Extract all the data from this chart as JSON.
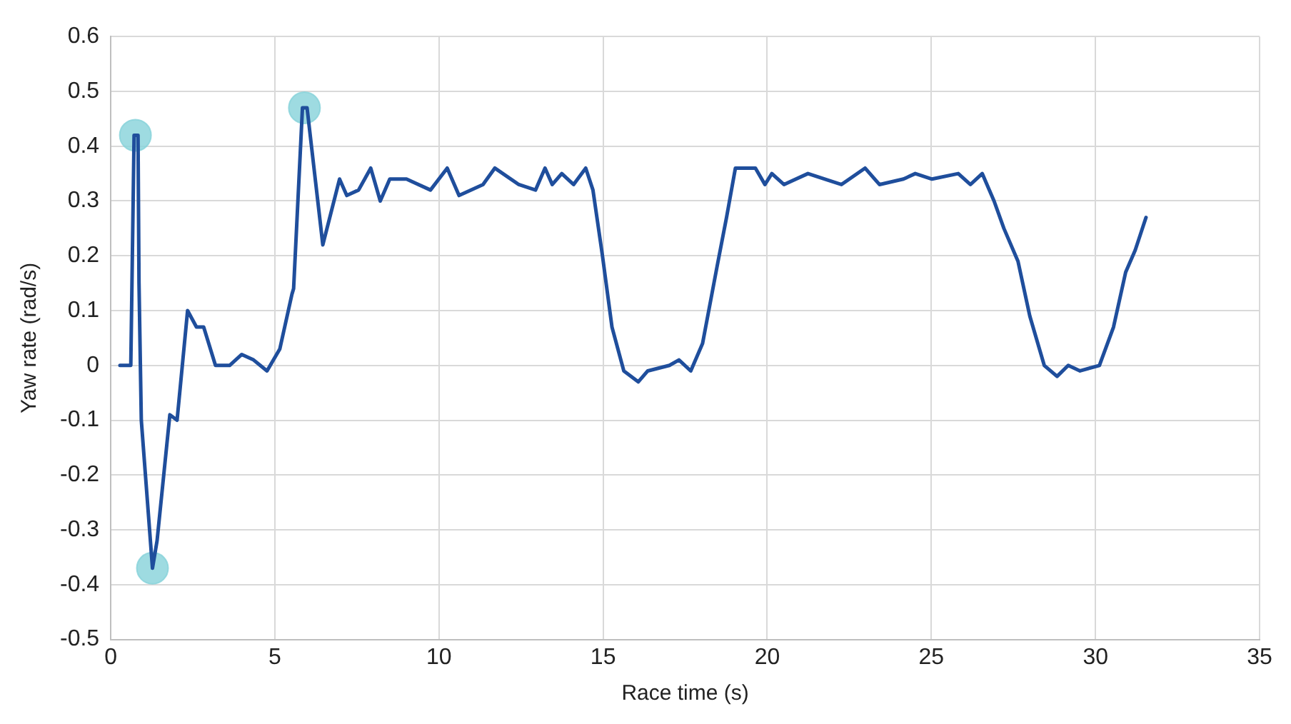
{
  "chart_data": {
    "type": "line",
    "xlabel": "Race time (s)",
    "ylabel": "Yaw rate (rad/s)",
    "xlim": [
      0,
      35
    ],
    "xticks": [
      0,
      5,
      10,
      15,
      20,
      25,
      30,
      35
    ],
    "ylim": [
      -0.5,
      0.6
    ],
    "yticks": [
      -0.5,
      -0.4,
      -0.3,
      -0.2,
      -0.1,
      0,
      0.1,
      0.2,
      0.3,
      0.4,
      0.5,
      0.6
    ],
    "grid": true,
    "legend": false,
    "marker": "none",
    "line_style": "solid",
    "series": [
      {
        "type": "line",
        "color": "#1f4e9c",
        "x": [
          0.28,
          0.61,
          0.71,
          0.83,
          0.86,
          0.93,
          1.27,
          1.41,
          1.8,
          2.02,
          2.34,
          2.61,
          2.83,
          3.19,
          3.62,
          3.99,
          4.35,
          4.76,
          5.15,
          5.52,
          5.57,
          5.84,
          5.98,
          6.46,
          6.97,
          7.19,
          7.55,
          7.92,
          8.21,
          8.5,
          9.01,
          9.74,
          10.25,
          10.61,
          11.34,
          11.7,
          12.43,
          12.94,
          13.23,
          13.45,
          13.74,
          14.1,
          14.47,
          14.69,
          14.98,
          15.27,
          15.63,
          16.07,
          16.36,
          17.02,
          17.31,
          17.67,
          18.03,
          18.47,
          18.76,
          19.03,
          19.27,
          19.64,
          19.93,
          20.14,
          20.51,
          21.24,
          22.26,
          22.98,
          23.42,
          24.15,
          24.51,
          25.02,
          25.82,
          26.19,
          26.55,
          26.91,
          27.21,
          27.64,
          28.0,
          28.44,
          28.83,
          29.17,
          29.53,
          30.12,
          30.55,
          30.92,
          31.21,
          31.54
        ],
        "values": [
          0,
          0,
          0.42,
          0.42,
          0.15,
          -0.1,
          -0.37,
          -0.32,
          -0.09,
          -0.1,
          0.1,
          0.07,
          0.07,
          0,
          0,
          0.02,
          0.01,
          -0.01,
          0.03,
          0.13,
          0.14,
          0.47,
          0.47,
          0.22,
          0.34,
          0.31,
          0.32,
          0.36,
          0.3,
          0.34,
          0.34,
          0.32,
          0.36,
          0.31,
          0.33,
          0.36,
          0.33,
          0.32,
          0.36,
          0.33,
          0.35,
          0.33,
          0.36,
          0.32,
          0.2,
          0.07,
          -0.01,
          -0.03,
          -0.01,
          0,
          0.01,
          -0.01,
          0.04,
          0.18,
          0.27,
          0.36,
          0.36,
          0.36,
          0.33,
          0.35,
          0.33,
          0.35,
          0.33,
          0.36,
          0.33,
          0.34,
          0.35,
          0.34,
          0.35,
          0.33,
          0.35,
          0.3,
          0.25,
          0.19,
          0.09,
          0,
          -0.02,
          0,
          -0.01,
          0,
          0.07,
          0.17,
          0.21,
          0.27
        ]
      },
      {
        "type": "scatter",
        "color": "#86d2da",
        "marker": "circle",
        "x": [
          0.75,
          1.27,
          5.9
        ],
        "values": [
          0.42,
          -0.37,
          0.47
        ]
      }
    ]
  }
}
